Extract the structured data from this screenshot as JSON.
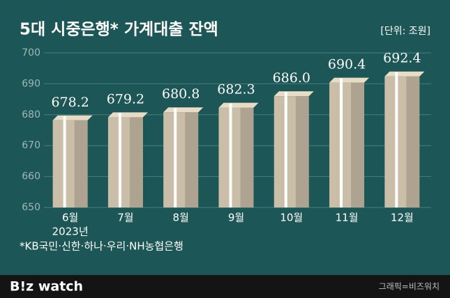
{
  "chart_data": {
    "type": "bar",
    "title": "5대 시중은행* 가계대출 잔액",
    "unit": "[단위: 조원]",
    "categories": [
      "6월",
      "7월",
      "8월",
      "9월",
      "10월",
      "11월",
      "12월"
    ],
    "category_sublabels": [
      "2023년",
      null,
      null,
      null,
      null,
      null,
      null
    ],
    "values": [
      678.2,
      679.2,
      680.8,
      682.3,
      686.0,
      690.4,
      692.4
    ],
    "value_labels": [
      "678.2",
      "679.2",
      "680.8",
      "682.3",
      "686.0",
      "690.4",
      "692.4"
    ],
    "color": "#cbbea9",
    "ylim": [
      650,
      700
    ],
    "yticks": [
      650,
      660,
      670,
      680,
      690,
      700
    ],
    "grid": true,
    "footnote": "*KB국민·신한·하나·우리·NH농협은행"
  },
  "brand": "B!z watch",
  "credit": "그래픽=비즈워치"
}
